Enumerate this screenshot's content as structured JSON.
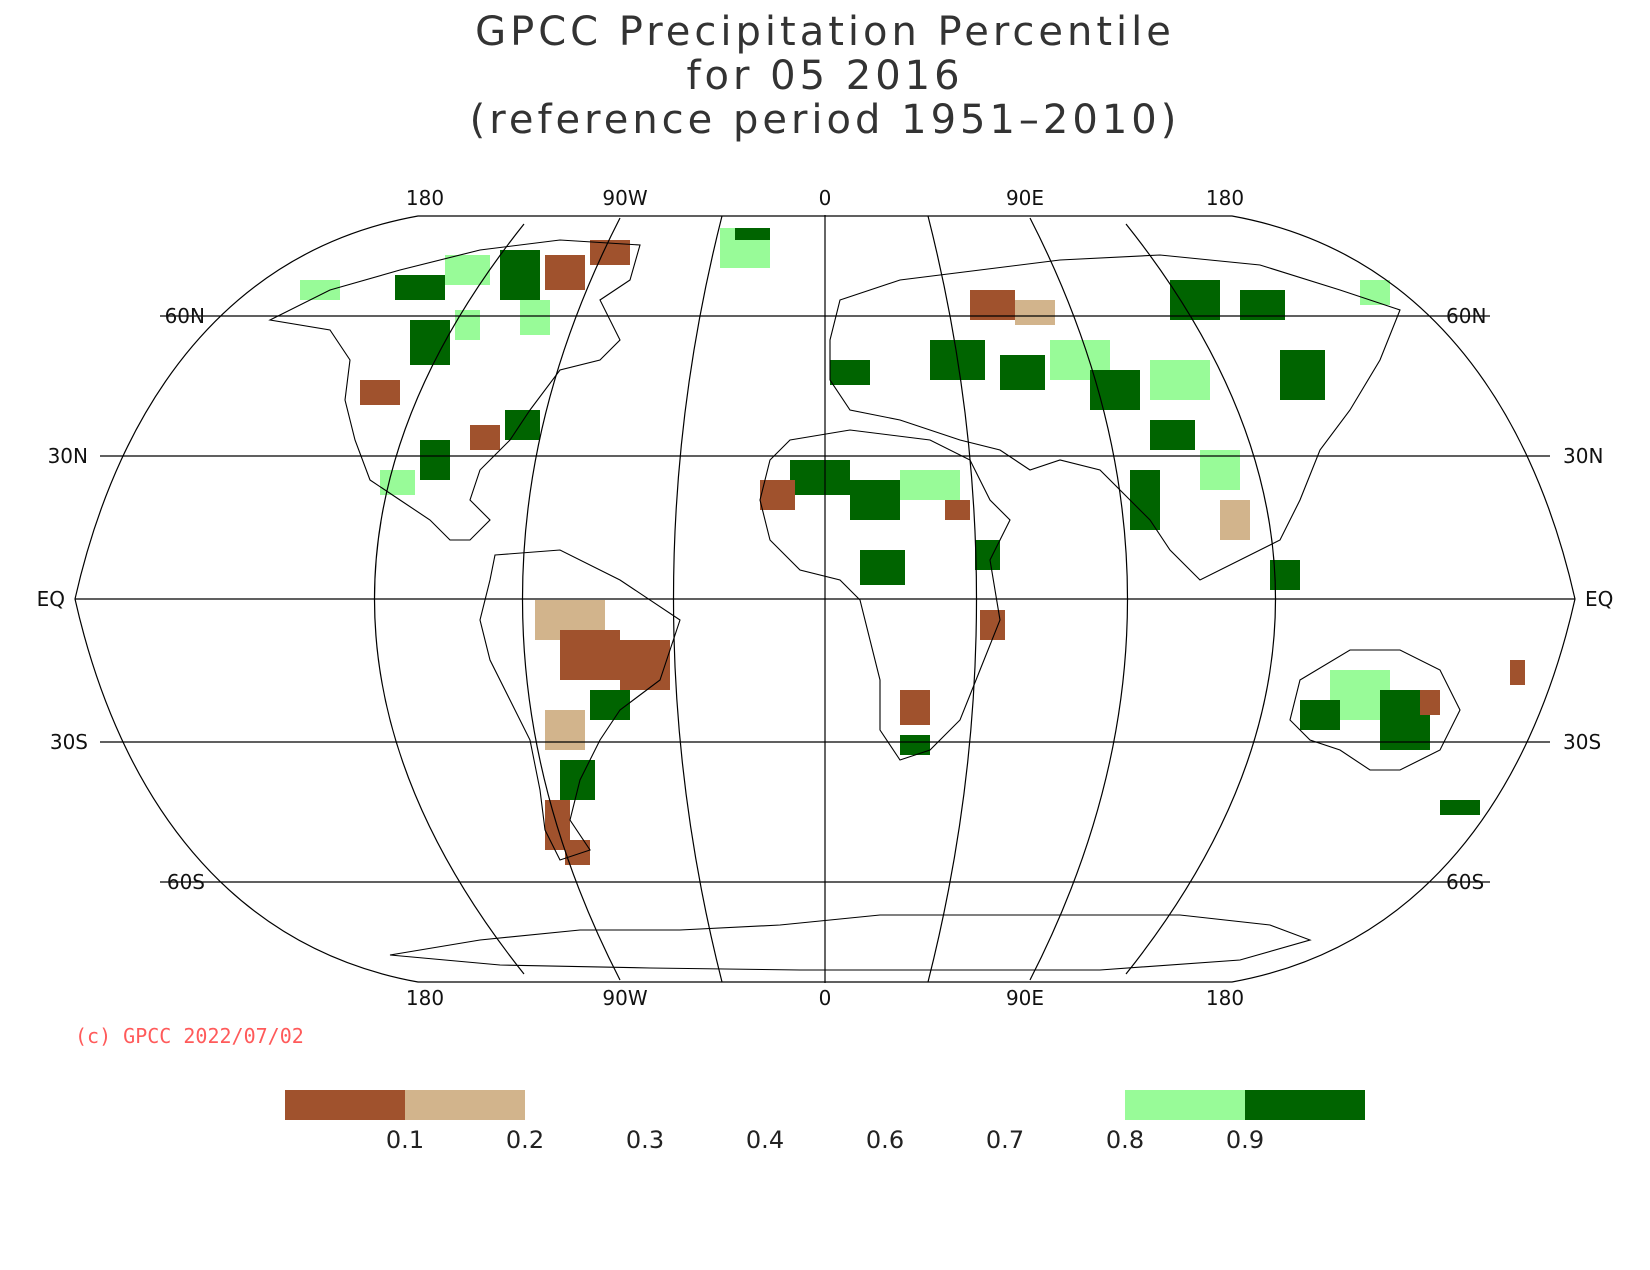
{
  "title": {
    "line1": "GPCC Precipitation Percentile",
    "line2": "for 05 2016",
    "line3": "(reference period 1951–2010)"
  },
  "map": {
    "projection": "Robinson",
    "graticule_lon_labels": [
      "180",
      "90W",
      "0",
      "90E",
      "180"
    ],
    "graticule_lat_labels": [
      "60N",
      "30N",
      "EQ",
      "30S",
      "60S"
    ]
  },
  "copyright": "(c) GPCC 2022/07/02",
  "colorbar": {
    "tick_labels": [
      "0.1",
      "0.2",
      "0.3",
      "0.4",
      "0.6",
      "0.7",
      "0.8",
      "0.9"
    ],
    "bins": [
      {
        "range": "<0.1",
        "color": "#a0522d"
      },
      {
        "range": "0.1-0.2",
        "color": "#d2b48c"
      },
      {
        "range": "0.2-0.8",
        "color": "#ffffff"
      },
      {
        "range": "0.8-0.9",
        "color": "#98fb98"
      },
      {
        "range": ">0.9",
        "color": "#006400"
      }
    ]
  },
  "colors": {
    "dry_strong": "#a0522d",
    "dry": "#d2b48c",
    "wet": "#98fb98",
    "wet_strong": "#006400",
    "copyright": "#ff5a5a"
  }
}
